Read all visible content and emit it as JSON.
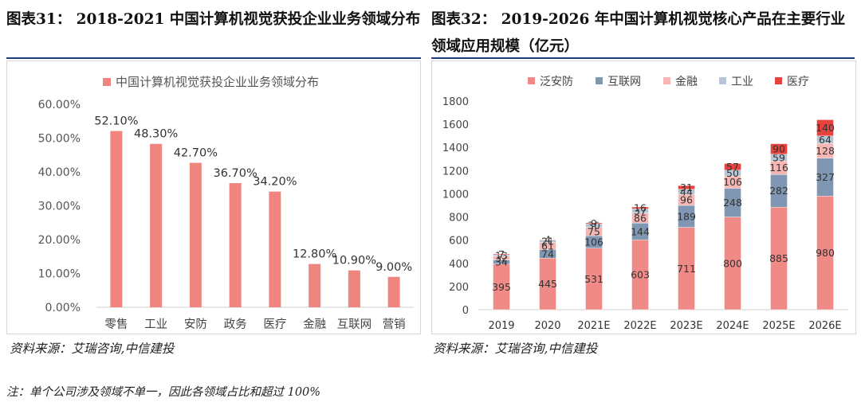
{
  "left_panel": {
    "title": "图表31：  2018-2021 中国计算机视觉获投企业业务领域分布",
    "source": "资料来源：艾瑞咨询,中信建投"
  },
  "right_panel": {
    "title_line1": "图表32：  2019-2026 年中国计算机视觉核心产品在主要行业",
    "title_line2": "领域应用规模（亿元）",
    "source": "资料来源：艾瑞咨询,中信建投"
  },
  "footnote": "注：单个公司涉及领域不单一，因此各领域占比和超过 100%",
  "chart_data": [
    {
      "type": "bar",
      "title": "",
      "legend": [
        "中国计算机视觉获投企业业务领域分布"
      ],
      "legend_position": "top",
      "categories": [
        "零售",
        "工业",
        "安防",
        "政务",
        "医疗",
        "金融",
        "互联网",
        "营销"
      ],
      "values": [
        52.1,
        48.3,
        42.7,
        36.7,
        34.2,
        12.8,
        10.9,
        9.0
      ],
      "labels": [
        "52.10%",
        "48.30%",
        "42.70%",
        "36.70%",
        "34.20%",
        "12.80%",
        "10.90%",
        "9.00%"
      ],
      "ylim": [
        0,
        60
      ],
      "yticks": [
        "0.00%",
        "10.00%",
        "20.00%",
        "30.00%",
        "40.00%",
        "50.00%",
        "60.00%"
      ],
      "ytick_values": [
        0,
        10,
        20,
        30,
        40,
        50,
        60
      ],
      "color": "#f08580",
      "xlabel": "",
      "ylabel": "",
      "grid": false
    },
    {
      "type": "bar",
      "stacked": true,
      "title": "",
      "legend_position": "top",
      "categories": [
        "2019",
        "2020",
        "2021E",
        "2022E",
        "2023E",
        "2024E",
        "2025E",
        "2026E"
      ],
      "series": [
        {
          "name": "泛安防",
          "color": "#ef8a87",
          "values": [
            395,
            445,
            531,
            603,
            711,
            800,
            885,
            980
          ]
        },
        {
          "name": "互联网",
          "color": "#7f97b2",
          "values": [
            34,
            74,
            106,
            144,
            189,
            248,
            282,
            327
          ]
        },
        {
          "name": "金融",
          "color": "#f6b6b3",
          "values": [
            32,
            61,
            75,
            86,
            96,
            106,
            116,
            128
          ]
        },
        {
          "name": "工业",
          "color": "#b7c6d6",
          "values": [
            13,
            21,
            30,
            37,
            44,
            50,
            59,
            64
          ]
        },
        {
          "name": "医疗",
          "color": "#e8423f",
          "values": [
            7,
            4,
            9,
            16,
            31,
            57,
            90,
            140
          ]
        }
      ],
      "ylim": [
        0,
        1800
      ],
      "yticks": [
        "0",
        "200",
        "400",
        "600",
        "800",
        "1000",
        "1200",
        "1400",
        "1600",
        "1800"
      ],
      "ytick_values": [
        0,
        200,
        400,
        600,
        800,
        1000,
        1200,
        1400,
        1600,
        1800
      ],
      "xlabel": "",
      "ylabel": "",
      "grid": false
    }
  ]
}
